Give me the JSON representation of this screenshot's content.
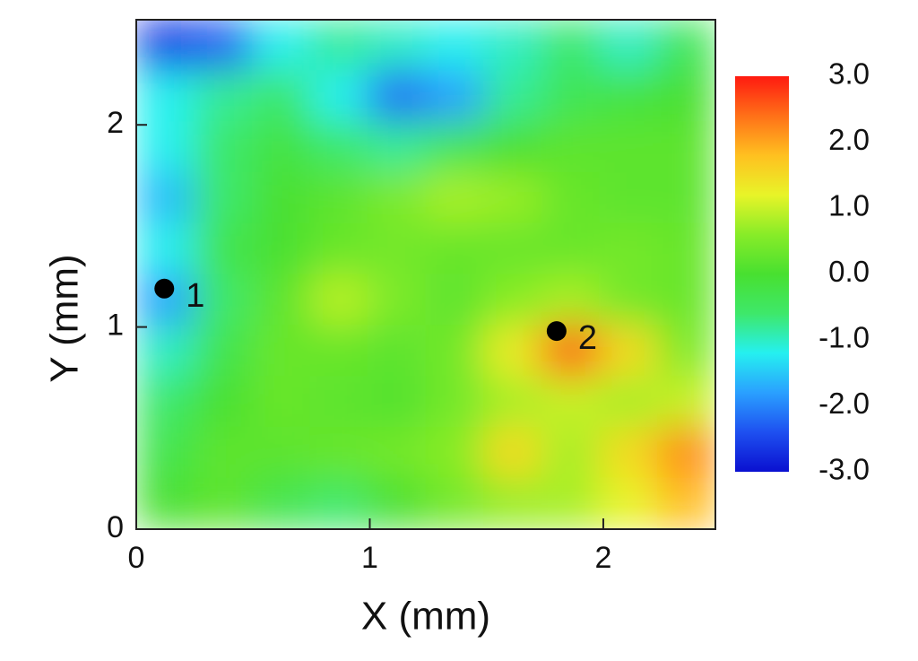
{
  "chart_data": {
    "type": "heatmap",
    "x_label": "X (mm)",
    "y_label": "Y (mm)",
    "xlim": [
      0,
      2.48
    ],
    "ylim": [
      0,
      2.52
    ],
    "xticks": [
      0,
      1,
      2
    ],
    "yticks": [
      0,
      1,
      2
    ],
    "zlim": [
      -3,
      3
    ],
    "colorbar_ticks": [
      {
        "value": 3,
        "label": "3.0"
      },
      {
        "value": 2,
        "label": "2.0"
      },
      {
        "value": 1,
        "label": "1.0"
      },
      {
        "value": 0,
        "label": "0.0"
      },
      {
        "value": -1,
        "label": "-1.0"
      },
      {
        "value": -2,
        "label": "-2.0"
      },
      {
        "value": -3,
        "label": "-3.0"
      }
    ],
    "colorscale": [
      "#0a10d0",
      "#1e50f0",
      "#2aa0ff",
      "#25f0f0",
      "#3ee86a",
      "#48e030",
      "#88ec28",
      "#e8f428",
      "#ffc020",
      "#ff7018",
      "#ff1a10"
    ],
    "z": [
      [
        -2.6,
        -2.3,
        -1.2,
        -0.8,
        -1.0,
        -1.2,
        -1.0,
        -0.6,
        -1.0,
        -0.4
      ],
      [
        -1.2,
        -0.8,
        -0.6,
        -1.2,
        -2.2,
        -1.8,
        -0.8,
        -0.4,
        -0.2,
        0
      ],
      [
        -1.2,
        -0.6,
        -0.2,
        -0.6,
        -0.8,
        -0.4,
        0,
        0.2,
        0.2,
        0.2
      ],
      [
        -1.6,
        -0.6,
        0,
        0.2,
        0.5,
        0.8,
        0.7,
        0.3,
        0.2,
        0.2
      ],
      [
        -1.2,
        -0.3,
        0,
        0.3,
        0.4,
        0.3,
        0.3,
        0.3,
        0.4,
        0.3
      ],
      [
        -1.8,
        -0.6,
        0.2,
        0.9,
        0.5,
        0.2,
        0.6,
        0.8,
        0.4,
        0.3
      ],
      [
        -1.0,
        -0.3,
        0.3,
        0.3,
        0.2,
        0.4,
        1.3,
        2.5,
        1.5,
        0.5
      ],
      [
        -0.6,
        0,
        0.3,
        0.2,
        0.1,
        0.4,
        0.8,
        1.0,
        0.8,
        1.0
      ],
      [
        -0.3,
        0.2,
        0.2,
        0.3,
        0.4,
        0.6,
        1.5,
        0.8,
        1.5,
        2.2
      ],
      [
        0,
        0.2,
        -0.3,
        -0.6,
        0,
        0.4,
        0.7,
        0.8,
        1.2,
        1.8
      ]
    ],
    "points": [
      {
        "label": "1",
        "x": 0.12,
        "y": 1.19
      },
      {
        "label": "2",
        "x": 1.8,
        "y": 0.98
      }
    ]
  }
}
